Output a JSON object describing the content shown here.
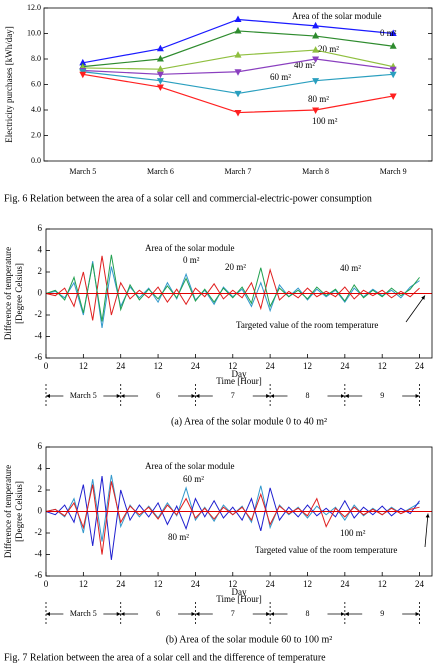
{
  "chart_data": [
    {
      "type": "category-line",
      "y_label": "Electricity purchases [kWh/day]",
      "legend_title": "Area of the solar module",
      "categories": [
        "March 5",
        "March 6",
        "March 7",
        "March 8",
        "March 9"
      ],
      "ylim": [
        0,
        12
      ],
      "yticks": [
        {
          "value": 0,
          "label": "0.0"
        },
        {
          "value": 2,
          "label": "2.0"
        },
        {
          "value": 4,
          "label": "4.0"
        },
        {
          "value": 6,
          "label": "6.0"
        },
        {
          "value": 8,
          "label": "8.0"
        },
        {
          "value": 10,
          "label": "10.0"
        },
        {
          "value": 12,
          "label": "12.0"
        }
      ],
      "series": [
        {
          "name": "0 m²",
          "color": "#1a1aff",
          "marker": "triangle-up",
          "values": [
            7.7,
            8.8,
            11.1,
            10.6,
            10.0
          ]
        },
        {
          "name": "20 m²",
          "color": "#2e8b2e",
          "marker": "triangle-up",
          "values": [
            7.4,
            8.0,
            10.2,
            9.8,
            9.0
          ]
        },
        {
          "name": "40 m²",
          "color": "#8fbf3f",
          "marker": "triangle-up",
          "values": [
            7.3,
            7.2,
            8.3,
            8.7,
            7.4
          ]
        },
        {
          "name": "60 m²",
          "color": "#8a3fbf",
          "marker": "triangle-down",
          "values": [
            7.1,
            6.8,
            7.0,
            8.0,
            7.2
          ]
        },
        {
          "name": "80 m²",
          "color": "#2a9fbf",
          "marker": "triangle-down",
          "values": [
            7.0,
            6.3,
            5.3,
            6.3,
            6.8
          ]
        },
        {
          "name": "100 m²",
          "color": "#ff2020",
          "marker": "triangle-down",
          "values": [
            6.8,
            5.8,
            3.8,
            4.0,
            5.1
          ]
        }
      ]
    },
    {
      "type": "time-line",
      "subtitle": "(a) Area of the solar module 0 to 40 m²",
      "y_label": [
        "Difference of temperature",
        "[Degree Celsius]"
      ],
      "x_label": "Time [Hour]",
      "day_label": "Day",
      "legend_title": "Area of the solar module",
      "target_label": "Targeted value of the room temperature",
      "target": 0,
      "target_color": "#e00000",
      "days": [
        "March 5",
        "6",
        "7",
        "8",
        "9"
      ],
      "day_bounds": [
        0,
        24,
        48,
        72,
        96,
        120
      ],
      "xlim": [
        0,
        124
      ],
      "ylim": [
        -6,
        6
      ],
      "xticks": [
        0,
        12,
        24,
        {
          "value": 36,
          "label": "12"
        },
        {
          "value": 48,
          "label": "24"
        },
        {
          "value": 60,
          "label": "12"
        },
        {
          "value": 72,
          "label": "24"
        },
        {
          "value": 84,
          "label": "12"
        },
        {
          "value": 96,
          "label": "24"
        },
        {
          "value": 108,
          "label": "12"
        },
        {
          "value": 120,
          "label": "24"
        }
      ],
      "yticks": [
        -6,
        -4,
        -2,
        0,
        2,
        4,
        6
      ],
      "x": [
        0,
        3,
        6,
        9,
        12,
        15,
        18,
        21,
        24,
        27,
        30,
        33,
        36,
        39,
        42,
        45,
        48,
        51,
        54,
        57,
        60,
        63,
        66,
        69,
        72,
        75,
        78,
        81,
        84,
        87,
        90,
        93,
        96,
        99,
        102,
        105,
        108,
        111,
        114,
        117,
        120
      ],
      "series": [
        {
          "name": "0 m²",
          "color": "#3399cc",
          "values": [
            0.0,
            0.2,
            -0.4,
            1.0,
            -2.0,
            3.0,
            -3.2,
            2.5,
            -1.2,
            0.6,
            -0.4,
            0.5,
            -0.8,
            1.0,
            -0.5,
            1.8,
            -0.6,
            0.3,
            -1.0,
            0.6,
            -0.3,
            0.4,
            -1.2,
            1.0,
            -1.6,
            0.8,
            -0.3,
            0.5,
            -0.6,
            0.4,
            -0.3,
            0.3,
            -0.8,
            0.5,
            -0.3,
            0.4,
            -0.2,
            0.3,
            -0.4,
            0.6,
            1.2
          ]
        },
        {
          "name": "20 m²",
          "color": "#e02020",
          "values": [
            0.0,
            -0.2,
            0.5,
            -1.2,
            2.0,
            -2.5,
            3.5,
            -2.0,
            1.0,
            -0.5,
            0.3,
            -0.4,
            0.6,
            -0.8,
            0.4,
            -1.0,
            0.5,
            -0.3,
            0.9,
            -0.5,
            0.3,
            -0.4,
            1.0,
            -1.4,
            2.2,
            -0.6,
            0.2,
            -0.4,
            0.5,
            -0.3,
            0.2,
            -0.3,
            0.6,
            -0.5,
            0.3,
            -0.2,
            0.3,
            -0.4,
            0.2,
            -0.3,
            0.5
          ]
        },
        {
          "name": "40 m²",
          "color": "#22a050",
          "values": [
            0.0,
            0.3,
            -0.6,
            1.5,
            -1.8,
            2.8,
            -2.6,
            3.6,
            -1.5,
            0.8,
            -0.6,
            0.4,
            -0.5,
            0.7,
            -0.4,
            1.4,
            -0.7,
            0.4,
            -0.8,
            0.5,
            -0.4,
            0.6,
            -0.9,
            2.4,
            -1.2,
            0.5,
            -0.3,
            0.3,
            -0.5,
            0.6,
            -0.2,
            0.4,
            -0.7,
            0.8,
            -0.4,
            0.3,
            -0.3,
            0.5,
            -0.2,
            0.4,
            1.5
          ]
        }
      ]
    },
    {
      "type": "time-line",
      "subtitle": "(b) Area of the solar module 60 to 100 m²",
      "y_label": [
        "Difference of temperature",
        "[Degree Celsius]"
      ],
      "x_label": "Time [Hour]",
      "day_label": "Day",
      "legend_title": "Area of the solar module",
      "target_label": "Targeted value of the room temperature",
      "target": 0,
      "target_color": "#e00000",
      "days": [
        "March 5",
        "6",
        "7",
        "8",
        "9"
      ],
      "day_bounds": [
        0,
        24,
        48,
        72,
        96,
        120
      ],
      "xlim": [
        0,
        124
      ],
      "ylim": [
        -6,
        6
      ],
      "xticks": [
        0,
        12,
        24,
        {
          "value": 36,
          "label": "12"
        },
        {
          "value": 48,
          "label": "24"
        },
        {
          "value": 60,
          "label": "12"
        },
        {
          "value": 72,
          "label": "24"
        },
        {
          "value": 84,
          "label": "12"
        },
        {
          "value": 96,
          "label": "24"
        },
        {
          "value": 108,
          "label": "12"
        },
        {
          "value": 120,
          "label": "24"
        }
      ],
      "yticks": [
        -6,
        -4,
        -2,
        0,
        2,
        4,
        6
      ],
      "x": [
        0,
        3,
        6,
        9,
        12,
        15,
        18,
        21,
        24,
        27,
        30,
        33,
        36,
        39,
        42,
        45,
        48,
        51,
        54,
        57,
        60,
        63,
        66,
        69,
        72,
        75,
        78,
        81,
        84,
        87,
        90,
        93,
        96,
        99,
        102,
        105,
        108,
        111,
        114,
        117,
        120
      ],
      "series": [
        {
          "name": "60 m²",
          "color": "#3399cc",
          "values": [
            0.0,
            0.2,
            -0.5,
            1.2,
            -2.0,
            3.0,
            -2.8,
            3.4,
            -1.4,
            0.6,
            -0.5,
            0.5,
            -0.6,
            0.8,
            -0.4,
            2.2,
            -0.8,
            0.4,
            -0.9,
            0.6,
            -0.3,
            0.5,
            -1.0,
            2.4,
            -1.5,
            0.6,
            -0.3,
            0.4,
            -0.6,
            0.5,
            -0.3,
            0.4,
            -0.8,
            0.6,
            -0.4,
            0.3,
            -0.3,
            0.4,
            -0.2,
            0.3,
            0.8
          ]
        },
        {
          "name": "80 m²",
          "color": "#2020d0",
          "values": [
            0.0,
            -0.3,
            0.6,
            -1.0,
            2.5,
            -3.2,
            3.3,
            -4.5,
            2.0,
            -0.8,
            0.6,
            -0.5,
            0.8,
            -1.2,
            0.5,
            -1.6,
            1.2,
            -0.5,
            1.0,
            -0.6,
            0.4,
            -0.8,
            1.2,
            -1.8,
            2.2,
            -0.8,
            0.4,
            -0.5,
            0.6,
            -0.4,
            0.3,
            -0.5,
            1.0,
            -0.6,
            0.4,
            -0.3,
            0.5,
            -0.4,
            0.3,
            -0.2,
            1.0
          ]
        },
        {
          "name": "100 m²",
          "color": "#e02020",
          "values": [
            0.0,
            0.2,
            -0.4,
            0.8,
            -1.5,
            2.5,
            -4.0,
            2.8,
            -1.0,
            0.5,
            -0.3,
            0.4,
            -0.7,
            0.6,
            -0.3,
            1.2,
            -0.6,
            0.3,
            -0.7,
            0.4,
            -0.3,
            0.4,
            -0.8,
            1.6,
            -1.2,
            0.5,
            -0.2,
            0.3,
            -0.4,
            1.2,
            -1.4,
            0.3,
            -0.5,
            0.4,
            -0.3,
            0.2,
            -0.3,
            0.3,
            -0.2,
            0.2,
            0.4
          ]
        }
      ]
    }
  ],
  "captions": {
    "fig6": "Fig. 6  Relation between the area of a solar cell and commercial-electric-power consumption",
    "fig7": "Fig. 7  Relation between the area of a solar cell and the difference of temperature"
  }
}
